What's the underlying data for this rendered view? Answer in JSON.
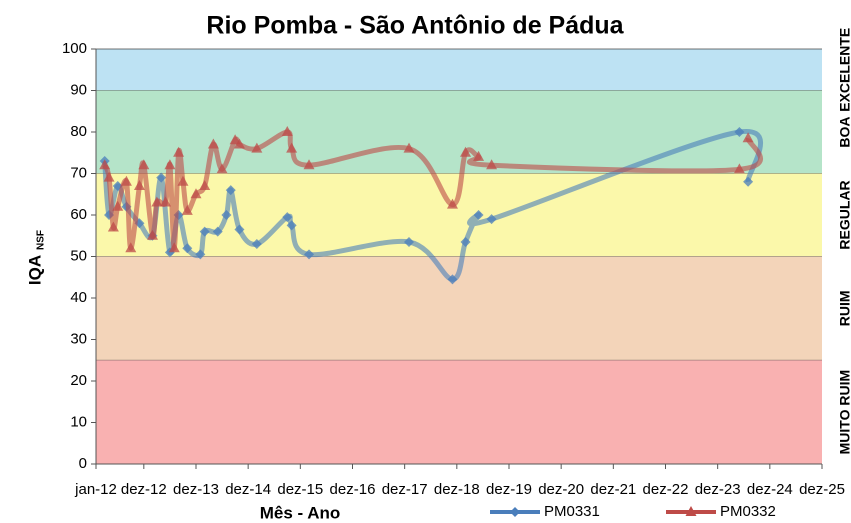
{
  "chart_data": {
    "type": "line",
    "title": "Rio Pomba - São Antônio de Pádua",
    "x_label": "Mês - Ano",
    "y_label": "IQA",
    "y_label_sub": "NSF",
    "xlim": [
      "2012-01",
      "2025-12"
    ],
    "xticks": [
      {
        "value": "2012-01",
        "label": "jan-12"
      },
      {
        "value": "2012-12",
        "label": "dez-12"
      },
      {
        "value": "2013-12",
        "label": "dez-13"
      },
      {
        "value": "2014-12",
        "label": "dez-14"
      },
      {
        "value": "2015-12",
        "label": "dez-15"
      },
      {
        "value": "2016-12",
        "label": "dez-16"
      },
      {
        "value": "2017-12",
        "label": "dez-17"
      },
      {
        "value": "2018-12",
        "label": "dez-18"
      },
      {
        "value": "2019-12",
        "label": "dez-19"
      },
      {
        "value": "2020-12",
        "label": "dez-20"
      },
      {
        "value": "2021-12",
        "label": "dez-21"
      },
      {
        "value": "2022-12",
        "label": "dez-22"
      },
      {
        "value": "2023-12",
        "label": "dez-23"
      },
      {
        "value": "2024-12",
        "label": "dez-24"
      },
      {
        "value": "2025-12",
        "label": "dez-25"
      }
    ],
    "ylim": [
      0,
      100
    ],
    "yticks": [
      0,
      10,
      20,
      30,
      40,
      50,
      60,
      70,
      80,
      90,
      100
    ],
    "bands": [
      {
        "label": "EXCELENTE",
        "from": 90,
        "to": 100,
        "color": "#bde2f3"
      },
      {
        "label": "BOA",
        "from": 70,
        "to": 90,
        "color": "#b5e4c9"
      },
      {
        "label": "REGULAR",
        "from": 50,
        "to": 70,
        "color": "#fbf8aa"
      },
      {
        "label": "RUIM",
        "from": 25,
        "to": 50,
        "color": "#f3d4b9"
      },
      {
        "label": "MUITO RUIM",
        "from": 0,
        "to": 25,
        "color": "#f9b1b1"
      }
    ],
    "series": [
      {
        "name": "PM0331",
        "color": "#4a7ebb",
        "marker": "diamond",
        "x": [
          "2012-03",
          "2012-04",
          "2012-06",
          "2012-08",
          "2012-11",
          "2013-02",
          "2013-04",
          "2013-06",
          "2013-08",
          "2013-10",
          "2014-01",
          "2014-02",
          "2014-05",
          "2014-07",
          "2014-08",
          "2014-10",
          "2015-02",
          "2015-09",
          "2015-10",
          "2016-02",
          "2018-01",
          "2018-11",
          "2019-02",
          "2019-05",
          "2019-08",
          "2024-05",
          "2024-07"
        ],
        "values": [
          73,
          60,
          67,
          62,
          58,
          55,
          69,
          51,
          60,
          52,
          50.5,
          56,
          56,
          60,
          66,
          56.5,
          53,
          59.5,
          57.5,
          50.5,
          53.5,
          44.5,
          53.5,
          60,
          59,
          80,
          68
        ]
      },
      {
        "name": "PM0332",
        "color": "#be4b48",
        "marker": "triangle",
        "x": [
          "2012-03",
          "2012-04",
          "2012-05",
          "2012-06",
          "2012-08",
          "2012-09",
          "2012-11",
          "2012-12",
          "2013-02",
          "2013-03",
          "2013-05",
          "2013-06",
          "2013-07",
          "2013-08",
          "2013-09",
          "2013-10",
          "2013-12",
          "2014-02",
          "2014-04",
          "2014-06",
          "2014-09",
          "2014-10",
          "2015-02",
          "2015-09",
          "2015-10",
          "2016-02",
          "2018-01",
          "2018-11",
          "2019-02",
          "2019-05",
          "2019-08",
          "2024-05",
          "2024-07"
        ],
        "values": [
          72,
          69,
          57,
          62,
          68,
          52,
          67,
          72,
          55,
          63,
          63,
          72,
          52,
          75,
          68,
          61,
          65,
          67,
          77,
          71,
          78,
          77,
          76,
          80,
          76,
          72,
          76,
          62.5,
          75,
          74,
          72,
          71,
          78.5
        ]
      }
    ]
  }
}
